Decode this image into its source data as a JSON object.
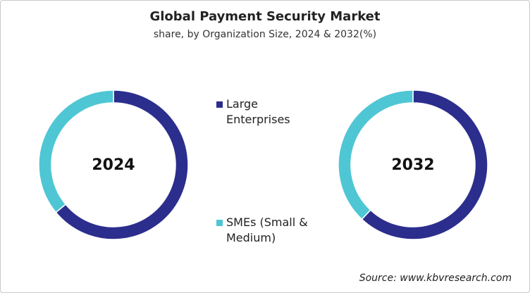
{
  "title": "Global Payment Security Market",
  "subtitle": "share, by Organization Size, 2024 & 2032(%)",
  "legend": {
    "categories": [
      "Large Enterprises",
      "SMEs (Small & Medium)"
    ],
    "colors": [
      "#2b2e8c",
      "#4fc6d4"
    ]
  },
  "source": "Source: www.kbvresearch.com",
  "chart_data": [
    {
      "type": "donut",
      "label": "2024",
      "values": [
        64,
        36
      ]
    },
    {
      "type": "donut",
      "label": "2032",
      "values": [
        62,
        38
      ]
    }
  ]
}
